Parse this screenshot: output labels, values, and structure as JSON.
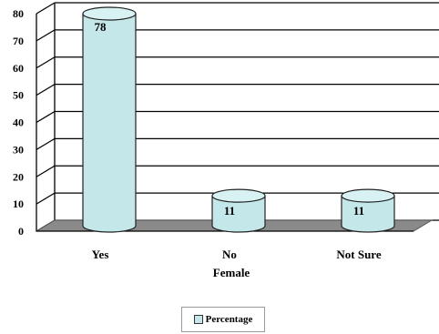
{
  "chart_data": {
    "type": "bar",
    "categories": [
      "Yes",
      "No",
      "Not Sure"
    ],
    "series": [
      {
        "name": "Percentage",
        "values": [
          78,
          11,
          11
        ]
      }
    ],
    "data_labels": [
      "78",
      "11",
      "11"
    ],
    "xlabel": "Female",
    "ylabel": "",
    "ylim": [
      0,
      80
    ],
    "yticks": [
      "0",
      "10",
      "20",
      "30",
      "40",
      "50",
      "60",
      "70",
      "80"
    ],
    "grid": true,
    "legend_position": "bottom",
    "style": "3d-cylinder",
    "colors": {
      "bar_fill": "#c4e8ea",
      "bar_top": "#d8f2f3",
      "bar_stroke": "#222222",
      "floor": "#8a8a8a"
    }
  }
}
